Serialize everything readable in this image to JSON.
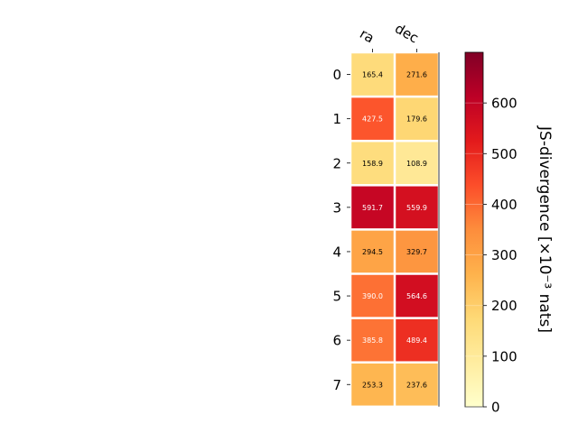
{
  "chart_data": {
    "type": "heatmap",
    "columns": [
      "ra",
      "dec"
    ],
    "rows": [
      "0",
      "1",
      "2",
      "3",
      "4",
      "5",
      "6",
      "7"
    ],
    "values": [
      [
        165.4,
        271.6
      ],
      [
        427.5,
        179.6
      ],
      [
        158.9,
        108.9
      ],
      [
        591.7,
        559.9
      ],
      [
        294.5,
        329.7
      ],
      [
        390.0,
        564.6
      ],
      [
        385.8,
        489.4
      ],
      [
        253.3,
        237.6
      ]
    ],
    "value_labels": [
      [
        "165.4",
        "271.6"
      ],
      [
        "427.5",
        "179.6"
      ],
      [
        "158.9",
        "108.9"
      ],
      [
        "591.7",
        "559.9"
      ],
      [
        "294.5",
        "329.7"
      ],
      [
        "390.0",
        "564.6"
      ],
      [
        "385.8",
        "489.4"
      ],
      [
        "253.3",
        "237.6"
      ]
    ],
    "colormap": "YlOrRd",
    "colorbar": {
      "label": "JS-divergence [×10⁻³ nats]",
      "min": 0,
      "max": 700,
      "ticks": [
        0,
        100,
        200,
        300,
        400,
        500,
        600
      ],
      "tick_labels": [
        "0",
        "100",
        "200",
        "300",
        "400",
        "500",
        "600"
      ]
    },
    "grid": false,
    "legend": "colorbar-right"
  }
}
